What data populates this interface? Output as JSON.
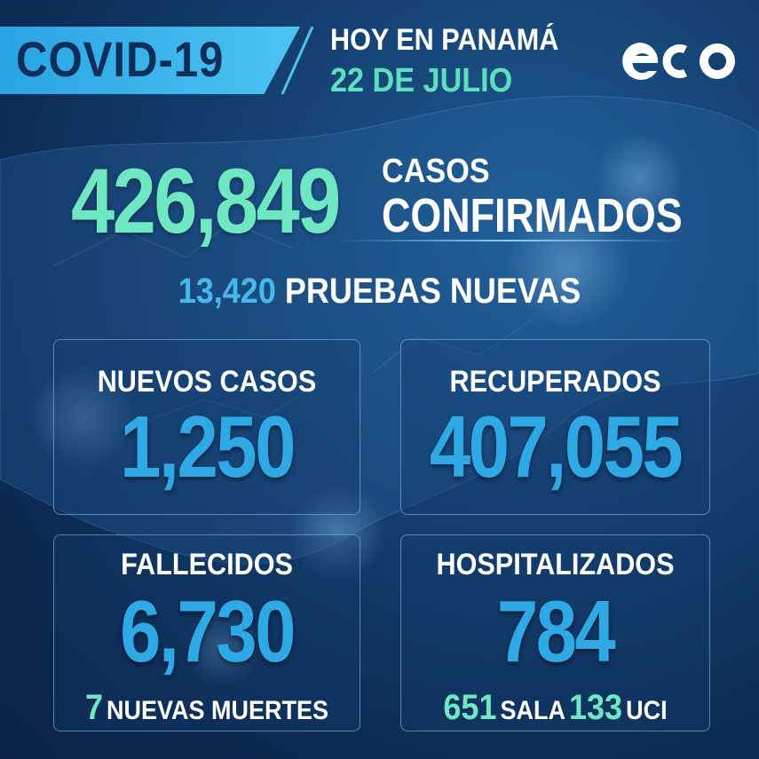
{
  "header": {
    "badge": "COVID-19",
    "line1": "HOY EN PANAMÁ",
    "line2": "22 DE JULIO",
    "logo_icon": "eco-logo"
  },
  "confirmed": {
    "value": "426,849",
    "label_small": "CASOS",
    "label_big": "CONFIRMADOS"
  },
  "tests": {
    "value": "13,420",
    "label": "PRUEBAS NUEVAS"
  },
  "cards": {
    "new_cases": {
      "label": "NUEVOS CASOS",
      "value": "1,250"
    },
    "recovered": {
      "label": "RECUPERADOS",
      "value": "407,055"
    },
    "deceased": {
      "label": "FALLECIDOS",
      "value": "6,730",
      "sub_value": "7",
      "sub_label": "NUEVAS MUERTES"
    },
    "hospitalized": {
      "label": "HOSPITALIZADOS",
      "value": "784",
      "ward_value": "651",
      "ward_label": "SALA",
      "icu_value": "133",
      "icu_label": "UCI"
    }
  },
  "colors": {
    "accent_green": "#6ee7c2",
    "accent_blue": "#2fa8e6",
    "background": "#123a68"
  }
}
